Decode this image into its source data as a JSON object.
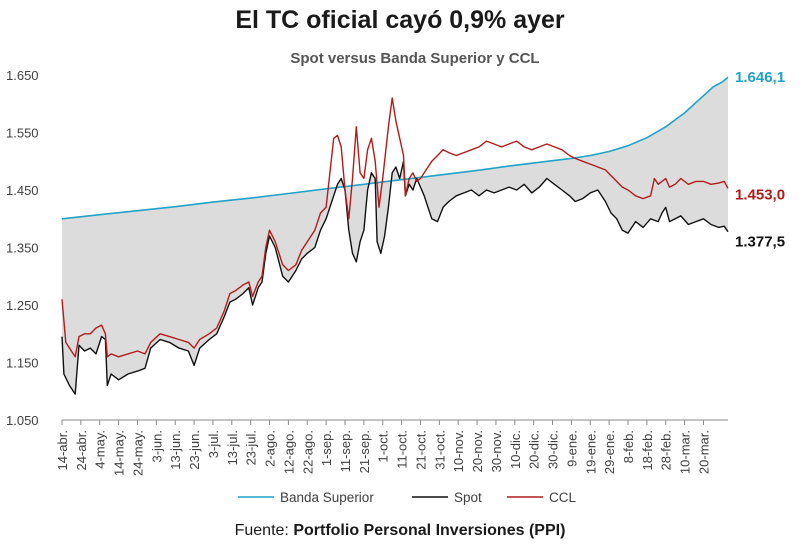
{
  "chart_data": {
    "type": "line",
    "title": "El TC oficial cayó 0,9% ayer",
    "subtitle": "Spot versus Banda Superior y CCL",
    "source_prefix": "Fuente:",
    "source_name": "Portfolio Personal Inversiones (PPI)",
    "ylim": [
      1050,
      1650
    ],
    "yticks": [
      "1.050",
      "1.150",
      "1.250",
      "1.350",
      "1.450",
      "1.550",
      "1.650"
    ],
    "ytick_values": [
      1050,
      1150,
      1250,
      1350,
      1450,
      1550,
      1650
    ],
    "x_tick_labels": [
      "14-abr.",
      "24-abr.",
      "4-may.",
      "14-may.",
      "24-may.",
      "3-jun.",
      "13-jun.",
      "23-jun.",
      "3-jul.",
      "13-jul.",
      "23-jul.",
      "2-ago.",
      "12-ago.",
      "22-ago.",
      "1-sep.",
      "11-sep.",
      "21-sep.",
      "1-oct.",
      "11-oct.",
      "21-oct.",
      "31-oct.",
      "10-nov.",
      "20-nov.",
      "30-nov.",
      "10-dic.",
      "20-dic.",
      "30-dic.",
      "9-ene.",
      "19-ene.",
      "29-ene.",
      "8-feb.",
      "18-feb.",
      "28-feb.",
      "10-mar.",
      "20-mar."
    ],
    "x_range_days": [
      0,
      345
    ],
    "colors": {
      "banda": "#1fa3c8",
      "spot": "#111111",
      "ccl": "#b01c1c",
      "fill": "#dcdcdc"
    },
    "series": [
      {
        "name": "Banda Superior",
        "end_label": "1.646,1",
        "points": [
          [
            0,
            1400
          ],
          [
            20,
            1407
          ],
          [
            40,
            1414
          ],
          [
            60,
            1421
          ],
          [
            80,
            1429
          ],
          [
            100,
            1436
          ],
          [
            120,
            1444
          ],
          [
            140,
            1452
          ],
          [
            160,
            1460
          ],
          [
            180,
            1468
          ],
          [
            200,
            1476
          ],
          [
            220,
            1484
          ],
          [
            240,
            1493
          ],
          [
            260,
            1501
          ],
          [
            270,
            1505
          ],
          [
            280,
            1510
          ],
          [
            290,
            1517
          ],
          [
            300,
            1527
          ],
          [
            310,
            1541
          ],
          [
            320,
            1560
          ],
          [
            330,
            1584
          ],
          [
            340,
            1614
          ],
          [
            345,
            1629
          ],
          [
            350,
            1638
          ],
          [
            353,
            1646.1
          ]
        ]
      },
      {
        "name": "Spot",
        "end_label": "1.377,5",
        "points": [
          [
            0,
            1195
          ],
          [
            1,
            1130
          ],
          [
            4,
            1110
          ],
          [
            7,
            1095
          ],
          [
            9,
            1180
          ],
          [
            12,
            1170
          ],
          [
            15,
            1175
          ],
          [
            18,
            1165
          ],
          [
            21,
            1195
          ],
          [
            23,
            1190
          ],
          [
            24,
            1110
          ],
          [
            26,
            1130
          ],
          [
            30,
            1120
          ],
          [
            35,
            1130
          ],
          [
            40,
            1135
          ],
          [
            44,
            1140
          ],
          [
            47,
            1175
          ],
          [
            52,
            1190
          ],
          [
            57,
            1185
          ],
          [
            62,
            1175
          ],
          [
            67,
            1170
          ],
          [
            70,
            1145
          ],
          [
            73,
            1175
          ],
          [
            78,
            1190
          ],
          [
            82,
            1200
          ],
          [
            86,
            1230
          ],
          [
            89,
            1255
          ],
          [
            92,
            1260
          ],
          [
            96,
            1270
          ],
          [
            99,
            1280
          ],
          [
            101,
            1250
          ],
          [
            104,
            1280
          ],
          [
            106,
            1290
          ],
          [
            108,
            1340
          ],
          [
            110,
            1370
          ],
          [
            113,
            1350
          ],
          [
            117,
            1300
          ],
          [
            120,
            1290
          ],
          [
            124,
            1310
          ],
          [
            127,
            1330
          ],
          [
            130,
            1340
          ],
          [
            134,
            1350
          ],
          [
            137,
            1380
          ],
          [
            140,
            1400
          ],
          [
            142,
            1420
          ],
          [
            144,
            1440
          ],
          [
            146,
            1460
          ],
          [
            148,
            1470
          ],
          [
            150,
            1450
          ],
          [
            152,
            1380
          ],
          [
            154,
            1340
          ],
          [
            156,
            1325
          ],
          [
            158,
            1360
          ],
          [
            160,
            1380
          ],
          [
            162,
            1450
          ],
          [
            164,
            1480
          ],
          [
            166,
            1470
          ],
          [
            167,
            1360
          ],
          [
            169,
            1340
          ],
          [
            171,
            1370
          ],
          [
            173,
            1420
          ],
          [
            175,
            1480
          ],
          [
            177,
            1490
          ],
          [
            179,
            1470
          ],
          [
            181,
            1500
          ],
          [
            182,
            1440
          ],
          [
            184,
            1460
          ],
          [
            186,
            1450
          ],
          [
            188,
            1470
          ],
          [
            190,
            1455
          ],
          [
            192,
            1440
          ],
          [
            194,
            1420
          ],
          [
            196,
            1400
          ],
          [
            199,
            1395
          ],
          [
            202,
            1420
          ],
          [
            205,
            1430
          ],
          [
            209,
            1440
          ],
          [
            213,
            1445
          ],
          [
            217,
            1450
          ],
          [
            221,
            1440
          ],
          [
            225,
            1450
          ],
          [
            229,
            1445
          ],
          [
            233,
            1450
          ],
          [
            237,
            1455
          ],
          [
            241,
            1450
          ],
          [
            245,
            1460
          ],
          [
            249,
            1445
          ],
          [
            253,
            1455
          ],
          [
            257,
            1470
          ],
          [
            261,
            1460
          ],
          [
            265,
            1450
          ],
          [
            269,
            1440
          ],
          [
            272,
            1430
          ],
          [
            276,
            1435
          ],
          [
            280,
            1445
          ],
          [
            284,
            1450
          ],
          [
            288,
            1430
          ],
          [
            291,
            1410
          ],
          [
            294,
            1400
          ],
          [
            297,
            1380
          ],
          [
            300,
            1375
          ],
          [
            304,
            1395
          ],
          [
            308,
            1385
          ],
          [
            312,
            1400
          ],
          [
            316,
            1395
          ],
          [
            318,
            1410
          ],
          [
            320,
            1420
          ],
          [
            322,
            1395
          ],
          [
            325,
            1400
          ],
          [
            328,
            1405
          ],
          [
            332,
            1390
          ],
          [
            336,
            1395
          ],
          [
            340,
            1400
          ],
          [
            344,
            1390
          ],
          [
            348,
            1385
          ],
          [
            351,
            1387
          ],
          [
            353,
            1377.5
          ]
        ]
      },
      {
        "name": "CCL",
        "end_label": "1.453,0",
        "points": [
          [
            0,
            1260
          ],
          [
            2,
            1185
          ],
          [
            5,
            1170
          ],
          [
            7,
            1160
          ],
          [
            9,
            1195
          ],
          [
            12,
            1200
          ],
          [
            15,
            1200
          ],
          [
            18,
            1210
          ],
          [
            21,
            1215
          ],
          [
            23,
            1200
          ],
          [
            24,
            1160
          ],
          [
            26,
            1165
          ],
          [
            30,
            1160
          ],
          [
            35,
            1165
          ],
          [
            40,
            1170
          ],
          [
            44,
            1165
          ],
          [
            47,
            1185
          ],
          [
            52,
            1200
          ],
          [
            57,
            1195
          ],
          [
            62,
            1190
          ],
          [
            67,
            1185
          ],
          [
            70,
            1175
          ],
          [
            73,
            1190
          ],
          [
            78,
            1200
          ],
          [
            82,
            1210
          ],
          [
            86,
            1240
          ],
          [
            89,
            1270
          ],
          [
            92,
            1275
          ],
          [
            96,
            1285
          ],
          [
            99,
            1290
          ],
          [
            101,
            1265
          ],
          [
            104,
            1290
          ],
          [
            106,
            1300
          ],
          [
            108,
            1350
          ],
          [
            110,
            1380
          ],
          [
            113,
            1360
          ],
          [
            117,
            1320
          ],
          [
            120,
            1310
          ],
          [
            124,
            1320
          ],
          [
            127,
            1345
          ],
          [
            130,
            1360
          ],
          [
            134,
            1380
          ],
          [
            137,
            1410
          ],
          [
            140,
            1420
          ],
          [
            142,
            1480
          ],
          [
            144,
            1540
          ],
          [
            146,
            1545
          ],
          [
            148,
            1525
          ],
          [
            150,
            1450
          ],
          [
            152,
            1400
          ],
          [
            154,
            1470
          ],
          [
            156,
            1560
          ],
          [
            158,
            1480
          ],
          [
            160,
            1470
          ],
          [
            162,
            1520
          ],
          [
            164,
            1540
          ],
          [
            166,
            1500
          ],
          [
            168,
            1420
          ],
          [
            170,
            1470
          ],
          [
            173,
            1560
          ],
          [
            175,
            1610
          ],
          [
            177,
            1570
          ],
          [
            179,
            1540
          ],
          [
            181,
            1510
          ],
          [
            182,
            1440
          ],
          [
            184,
            1470
          ],
          [
            186,
            1480
          ],
          [
            188,
            1465
          ],
          [
            190,
            1470
          ],
          [
            192,
            1480
          ],
          [
            194,
            1490
          ],
          [
            196,
            1500
          ],
          [
            199,
            1510
          ],
          [
            202,
            1520
          ],
          [
            205,
            1515
          ],
          [
            209,
            1510
          ],
          [
            213,
            1515
          ],
          [
            217,
            1520
          ],
          [
            221,
            1525
          ],
          [
            225,
            1535
          ],
          [
            229,
            1530
          ],
          [
            233,
            1525
          ],
          [
            237,
            1530
          ],
          [
            241,
            1535
          ],
          [
            245,
            1525
          ],
          [
            249,
            1520
          ],
          [
            253,
            1525
          ],
          [
            257,
            1530
          ],
          [
            261,
            1525
          ],
          [
            265,
            1520
          ],
          [
            269,
            1510
          ],
          [
            272,
            1505
          ],
          [
            276,
            1500
          ],
          [
            280,
            1495
          ],
          [
            284,
            1490
          ],
          [
            288,
            1485
          ],
          [
            291,
            1475
          ],
          [
            294,
            1465
          ],
          [
            297,
            1455
          ],
          [
            300,
            1450
          ],
          [
            304,
            1440
          ],
          [
            308,
            1435
          ],
          [
            312,
            1440
          ],
          [
            314,
            1470
          ],
          [
            316,
            1460
          ],
          [
            318,
            1465
          ],
          [
            320,
            1470
          ],
          [
            322,
            1455
          ],
          [
            325,
            1460
          ],
          [
            328,
            1470
          ],
          [
            332,
            1460
          ],
          [
            336,
            1465
          ],
          [
            340,
            1465
          ],
          [
            344,
            1460
          ],
          [
            348,
            1462
          ],
          [
            351,
            1465
          ],
          [
            353,
            1453.0
          ]
        ]
      }
    ]
  }
}
